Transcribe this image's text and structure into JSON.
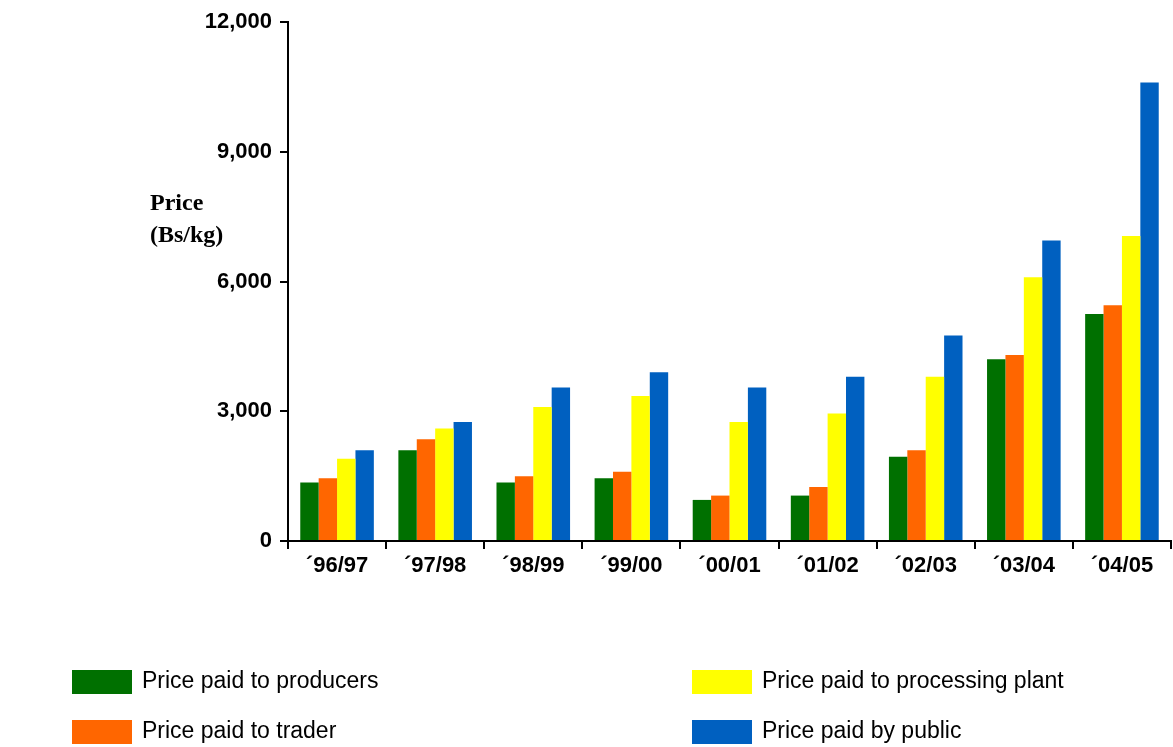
{
  "chart_data": {
    "type": "bar",
    "ylabel": "Price (Bs/kg)",
    "categories": [
      "´96/97",
      "´97/98",
      "´98/99",
      "´99/00",
      "´00/01",
      "´01/02",
      "´02/03",
      "´03/04",
      "´04/05"
    ],
    "series": [
      {
        "name": "Price paid to producers",
        "color": "#007000",
        "values": [
          1350,
          2100,
          1350,
          1450,
          950,
          1050,
          1950,
          4200,
          5250
        ]
      },
      {
        "name": "Price paid to trader",
        "color": "#ff6600",
        "values": [
          1450,
          2350,
          1500,
          1600,
          1050,
          1250,
          2100,
          4300,
          5450
        ]
      },
      {
        "name": "Price paid to processing plant",
        "color": "#ffff00",
        "values": [
          1900,
          2600,
          3100,
          3350,
          2750,
          2950,
          3800,
          6100,
          7050
        ]
      },
      {
        "name": "Price paid by public",
        "color": "#0060c0",
        "values": [
          2100,
          2750,
          3550,
          3900,
          3550,
          3800,
          4750,
          6950,
          10600
        ]
      }
    ],
    "ylim": [
      0,
      12000
    ],
    "yticks": [
      {
        "value": 0,
        "label": "0"
      },
      {
        "value": 3000,
        "label": "3,000"
      },
      {
        "value": 6000,
        "label": "6,000"
      },
      {
        "value": 9000,
        "label": "9,000"
      },
      {
        "value": 12000,
        "label": "12,000"
      }
    ],
    "grid": false,
    "legend": "bottom"
  }
}
